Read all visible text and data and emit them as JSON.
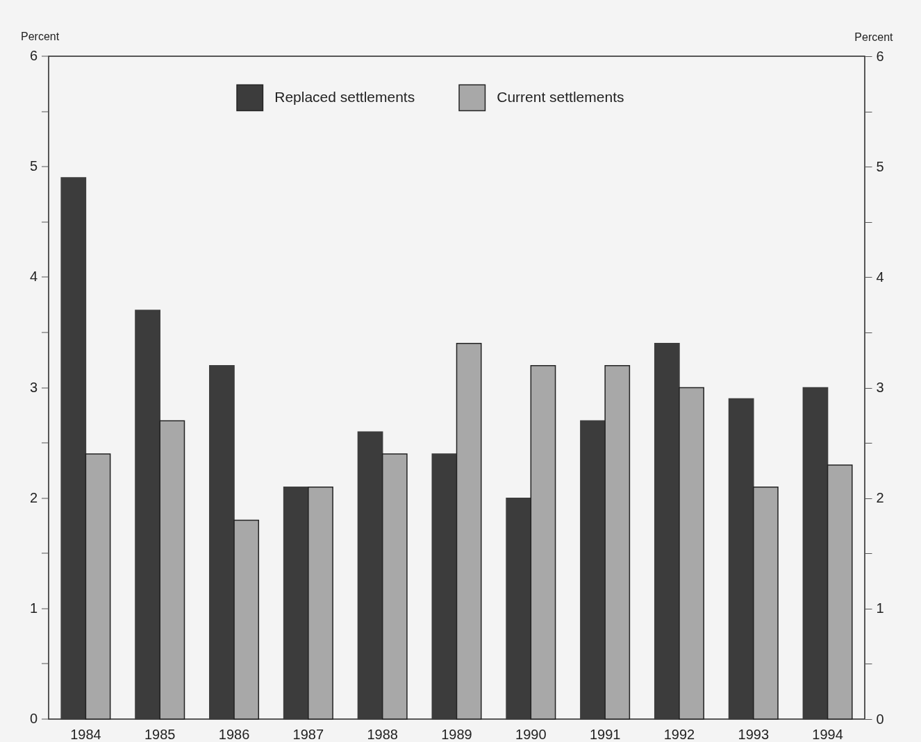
{
  "chart_data": {
    "type": "bar",
    "ylabel": "Percent",
    "y2label": "Percent",
    "categories": [
      "1984",
      "1985",
      "1986",
      "1987",
      "1988",
      "1989",
      "1990",
      "1991",
      "1992",
      "1993",
      "1994"
    ],
    "series": [
      {
        "name": "Replaced settlements",
        "color": "#3c3c3c",
        "values": [
          4.9,
          3.7,
          3.2,
          2.1,
          2.6,
          2.4,
          2.0,
          2.7,
          3.4,
          2.9,
          3.0
        ]
      },
      {
        "name": "Current settlements",
        "color": "#a8a8a8",
        "values": [
          2.4,
          2.7,
          1.8,
          2.1,
          2.4,
          3.4,
          3.2,
          3.2,
          3.0,
          2.1,
          2.3
        ]
      }
    ],
    "ylim": [
      0,
      6
    ],
    "yticks": [
      0,
      {
        "value": 0.5,
        "label": null
      },
      1,
      {
        "value": 1.5,
        "label": null
      },
      2,
      {
        "value": 2.5,
        "label": null
      },
      3,
      {
        "value": 3.5,
        "label": null
      },
      4,
      {
        "value": 4.5,
        "label": null
      },
      5,
      {
        "value": 5.5,
        "label": null
      },
      6
    ],
    "y2lim": [
      0,
      6
    ],
    "y2ticks": [
      0,
      {
        "value": 0.5,
        "label": null
      },
      1,
      {
        "value": 1.5,
        "label": null
      },
      2,
      {
        "value": 2.5,
        "label": null
      },
      3,
      {
        "value": 3.5,
        "label": null
      },
      4,
      {
        "value": 4.5,
        "label": null
      },
      5,
      {
        "value": 5.5,
        "label": null
      },
      6
    ],
    "legend": "top",
    "grid": false
  }
}
